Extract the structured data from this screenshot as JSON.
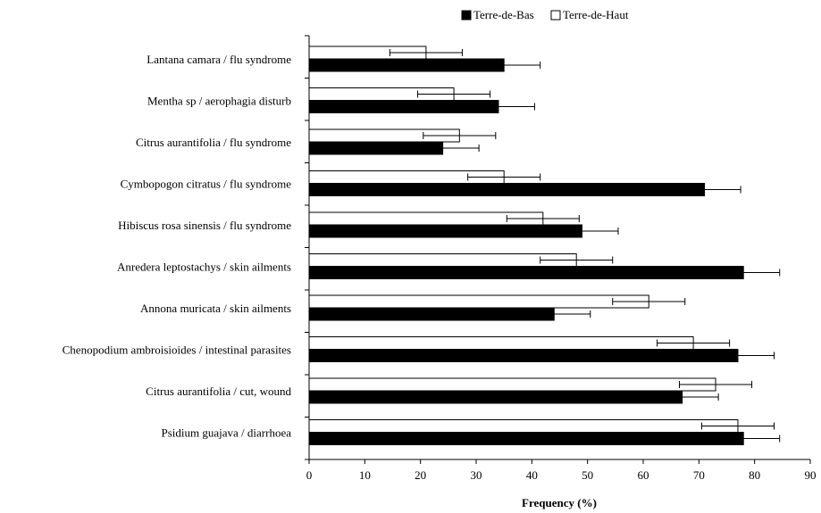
{
  "chart_data": {
    "type": "bar",
    "orientation": "horizontal",
    "title": "",
    "xlabel": "Frequency (%)",
    "ylabel": "",
    "xlim": [
      0,
      90
    ],
    "xticks": [
      "0",
      "10",
      "20",
      "30",
      "40",
      "50",
      "60",
      "70",
      "80",
      "90"
    ],
    "grid": false,
    "legend_position": "top",
    "categories": [
      "Lantana camara / flu syndrome",
      "Mentha sp / aerophagia disturb",
      "Citrus aurantifolia / flu syndrome",
      "Cymbopogon citratus / flu syndrome",
      "Hibiscus rosa sinensis / flu syndrome",
      "Anredera leptostachys / skin ailments",
      "Annona muricata / skin ailments",
      "Chenopodium ambroisioides / intestinal parasites",
      "Citrus aurantifolia / cut, wound",
      "Psidium guajava / diarrhoea"
    ],
    "series": [
      {
        "name": "Terre-de-Haut",
        "color": "#ffffff",
        "values": [
          21,
          26,
          27,
          35,
          42,
          48,
          61,
          69,
          73,
          77
        ],
        "error": [
          6.5,
          6.5,
          6.5,
          6.5,
          6.5,
          6.5,
          6.5,
          6.5,
          6.5,
          6.5
        ]
      },
      {
        "name": "Terre-de-Bas",
        "color": "#000000",
        "values": [
          35,
          34,
          24,
          71,
          49,
          78,
          44,
          77,
          67,
          78
        ],
        "error": [
          6.5,
          6.5,
          6.5,
          6.5,
          6.5,
          6.5,
          6.5,
          6.5,
          6.5,
          6.5
        ]
      }
    ]
  }
}
